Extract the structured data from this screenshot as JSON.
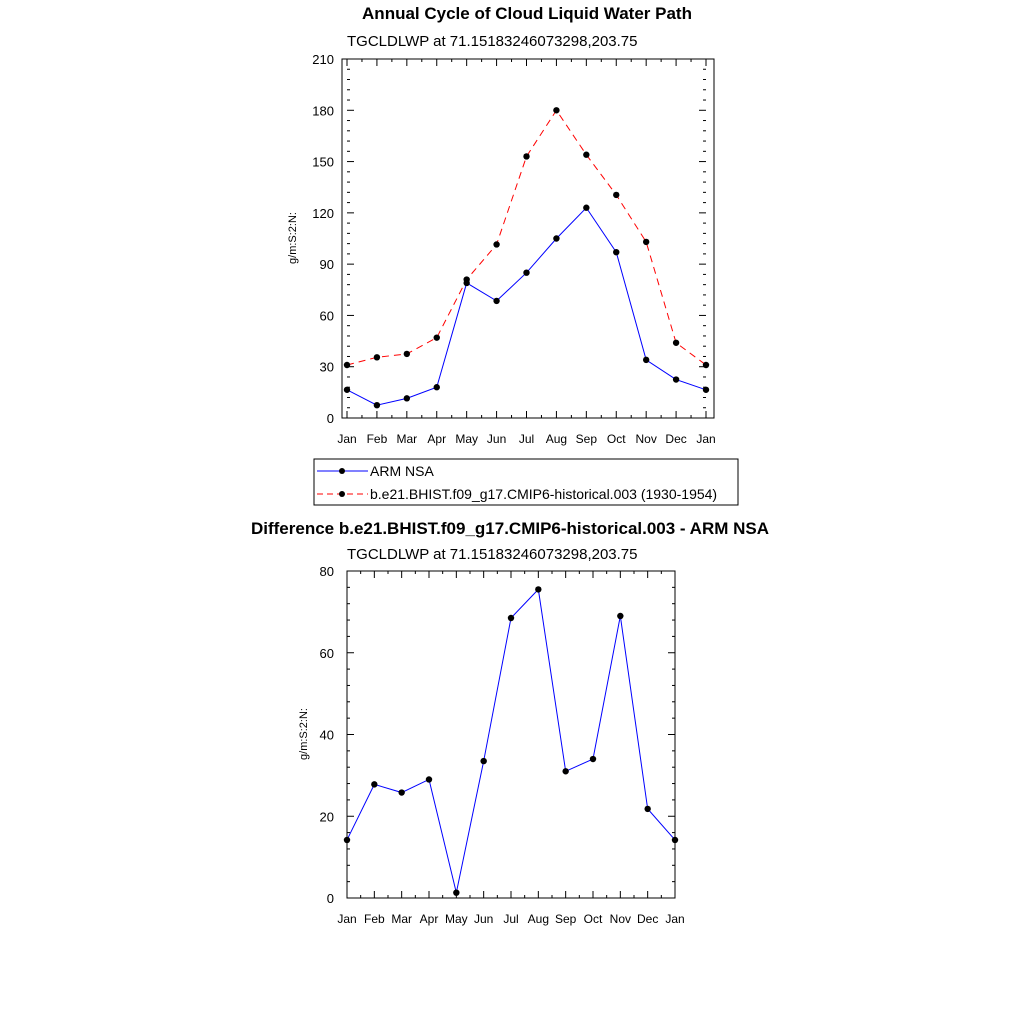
{
  "chart_data": [
    {
      "type": "line",
      "title": "Annual Cycle of Cloud Liquid Water Path",
      "subtitle": "TGCLDLWP at 71.15183246073298,203.75",
      "xlabel": "",
      "ylabel": "g/m:S:2:N:",
      "categories": [
        "Jan",
        "Feb",
        "Mar",
        "Apr",
        "May",
        "Jun",
        "Jul",
        "Aug",
        "Sep",
        "Oct",
        "Nov",
        "Dec",
        "Jan"
      ],
      "ylim": [
        0,
        210
      ],
      "yticks": [
        "0",
        "30",
        "60",
        "90",
        "120",
        "150",
        "180",
        "210"
      ],
      "grid": false,
      "legend_position": "bottom",
      "series": [
        {
          "name": "ARM NSA",
          "color": "#0000ff",
          "dash": "solid",
          "values": [
            16.5,
            7.5,
            11.5,
            18,
            79,
            68.5,
            85,
            105,
            123,
            97,
            34,
            22.5,
            16.5
          ]
        },
        {
          "name": "b.e21.BHIST.f09_g17.CMIP6-historical.003 (1930-1954)",
          "color": "#ff0000",
          "dash": "dashed",
          "values": [
            31,
            35.5,
            37.5,
            47,
            81,
            101.5,
            153,
            180,
            154,
            130.5,
            103,
            44,
            31
          ]
        }
      ]
    },
    {
      "type": "line",
      "title": "Difference b.e21.BHIST.f09_g17.CMIP6-historical.003 - ARM NSA",
      "subtitle": "TGCLDLWP at 71.15183246073298,203.75",
      "xlabel": "",
      "ylabel": "g/m:S:2:N:",
      "categories": [
        "Jan",
        "Feb",
        "Mar",
        "Apr",
        "May",
        "Jun",
        "Jul",
        "Aug",
        "Sep",
        "Oct",
        "Nov",
        "Dec",
        "Jan"
      ],
      "ylim": [
        0,
        80
      ],
      "yticks": [
        "0",
        "20",
        "40",
        "60",
        "80"
      ],
      "grid": false,
      "series": [
        {
          "name": "Difference",
          "color": "#0000ff",
          "dash": "solid",
          "values": [
            14.2,
            27.8,
            25.8,
            29,
            1.3,
            33.5,
            68.5,
            75.5,
            31,
            34,
            69,
            21.8,
            14.2
          ]
        }
      ]
    }
  ]
}
